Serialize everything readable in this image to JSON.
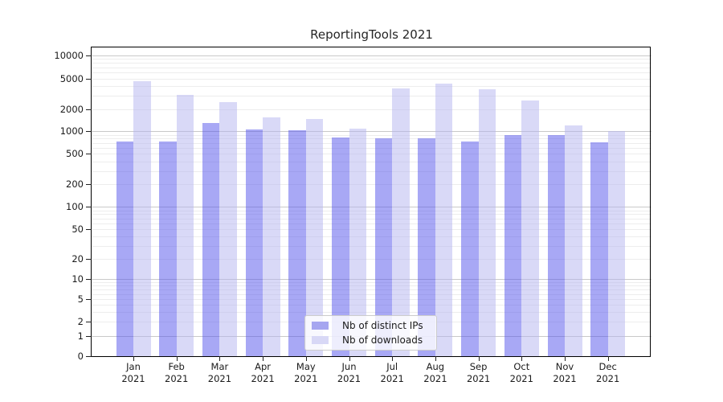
{
  "figure": {
    "background": "#ffffff"
  },
  "chart_data": {
    "type": "bar",
    "title": "ReportingTools 2021",
    "categories": [
      "Jan 2021",
      "Feb 2021",
      "Mar 2021",
      "Apr 2021",
      "May 2021",
      "Jun 2021",
      "Jul 2021",
      "Aug 2021",
      "Sep 2021",
      "Oct 2021",
      "Nov 2021",
      "Dec 2021"
    ],
    "x_tick_months": [
      "Jan",
      "Feb",
      "Mar",
      "Apr",
      "May",
      "Jun",
      "Jul",
      "Aug",
      "Sep",
      "Oct",
      "Nov",
      "Dec"
    ],
    "x_tick_year": "2021",
    "series": [
      {
        "name": "Nb of distinct IPs",
        "color": "rgba(81,81,235,0.5)",
        "legend_color": "#a6a6f0",
        "values": [
          730,
          730,
          1300,
          1050,
          1025,
          830,
          810,
          810,
          730,
          890,
          890,
          720
        ]
      },
      {
        "name": "Nb of downloads",
        "color": "rgba(179,179,239,0.5)",
        "legend_color": "#d8d8f6",
        "values": [
          4700,
          3100,
          2500,
          1550,
          1470,
          1100,
          3700,
          4300,
          3650,
          2600,
          1200,
          1000
        ]
      }
    ],
    "y_axis": {
      "scale": "symlog",
      "ticks": [
        0,
        1,
        2,
        5,
        10,
        20,
        50,
        100,
        200,
        500,
        1000,
        2000,
        5000,
        10000
      ],
      "range": [
        0,
        10000
      ],
      "major_grid_values": [
        1,
        10,
        100,
        1000,
        10000
      ]
    },
    "grid": true,
    "legend": {
      "position": "lower center"
    },
    "colors": {
      "major_grid": "#c9c9c9",
      "minor_grid": "#ededed",
      "spine": "#000000",
      "text": "#1a1a1a"
    }
  }
}
